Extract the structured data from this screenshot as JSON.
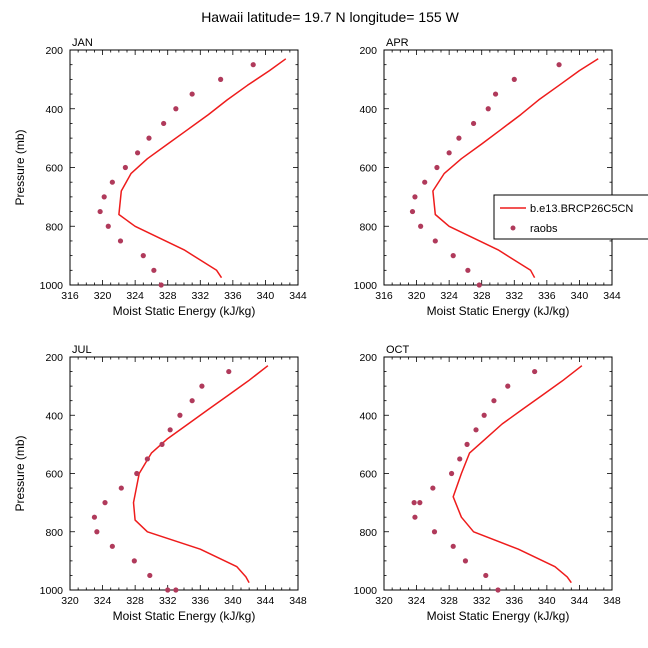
{
  "figure_title": "Hawaii  latitude= 19.7 N longitude= 155 W",
  "colors": {
    "model": "#ee1c1c",
    "obs": "#b03a5b",
    "axis": "#000000"
  },
  "legend": {
    "placement": "right of APR panel",
    "model_label": "b.e13.BRCP26C5CN",
    "obs_label": "raobs"
  },
  "chart_data": [
    {
      "type": "line",
      "title": "JAN",
      "xlabel": "Moist Static Energy (kJ/kg)",
      "ylabel": "Pressure (mb)",
      "xlim": [
        316,
        344
      ],
      "ylim": [
        1000,
        200
      ],
      "y_inverted": true,
      "xticks": [
        316,
        320,
        324,
        328,
        332,
        336,
        340,
        344
      ],
      "yticks": [
        200,
        400,
        600,
        800,
        1000
      ],
      "series": [
        {
          "name": "b.e13.BRCP26C5CN",
          "style": "line",
          "x": [
            342.5,
            340.5,
            337.8,
            335.3,
            333.0,
            330.5,
            328.0,
            325.5,
            323.5,
            322.3,
            322.0,
            324.0,
            330.0,
            334.0,
            334.6
          ],
          "y": [
            230,
            270,
            320,
            370,
            420,
            470,
            520,
            570,
            620,
            680,
            760,
            800,
            880,
            950,
            975
          ]
        },
        {
          "name": "raobs",
          "style": "markers",
          "x": [
            338.5,
            334.5,
            331.0,
            329.0,
            327.5,
            325.7,
            324.3,
            322.8,
            321.2,
            320.2,
            319.7,
            320.7,
            322.2,
            325.0,
            326.3,
            327.2
          ],
          "y": [
            250,
            300,
            350,
            400,
            450,
            500,
            550,
            600,
            650,
            700,
            750,
            800,
            850,
            900,
            950,
            1000
          ]
        }
      ]
    },
    {
      "type": "line",
      "title": "APR",
      "xlabel": "Moist Static Energy (kJ/kg)",
      "ylabel": "",
      "xlim": [
        316,
        344
      ],
      "ylim": [
        1000,
        200
      ],
      "y_inverted": true,
      "xticks": [
        316,
        320,
        324,
        328,
        332,
        336,
        340,
        344
      ],
      "yticks": [
        200,
        400,
        600,
        800,
        1000
      ],
      "series": [
        {
          "name": "b.e13.BRCP26C5CN",
          "style": "line",
          "x": [
            342.3,
            340.0,
            337.5,
            335.0,
            332.8,
            330.4,
            328.0,
            325.5,
            323.4,
            322.0,
            322.3,
            324.0,
            330.0,
            334.0,
            334.5
          ],
          "y": [
            230,
            270,
            320,
            370,
            420,
            470,
            520,
            570,
            620,
            680,
            760,
            800,
            880,
            950,
            975
          ]
        },
        {
          "name": "raobs",
          "style": "markers",
          "x": [
            337.5,
            332.0,
            329.7,
            328.8,
            327.0,
            325.2,
            324.0,
            322.5,
            321.0,
            319.8,
            319.5,
            320.5,
            322.3,
            324.5,
            326.3,
            327.7
          ],
          "y": [
            250,
            300,
            350,
            400,
            450,
            500,
            550,
            600,
            650,
            700,
            750,
            800,
            850,
            900,
            950,
            1000
          ]
        }
      ]
    },
    {
      "type": "line",
      "title": "JUL",
      "xlabel": "Moist Static Energy (kJ/kg)",
      "ylabel": "Pressure (mb)",
      "xlim": [
        320,
        348
      ],
      "ylim": [
        1000,
        200
      ],
      "y_inverted": true,
      "xticks": [
        320,
        324,
        328,
        332,
        336,
        340,
        344,
        348
      ],
      "yticks": [
        200,
        400,
        600,
        800,
        1000
      ],
      "series": [
        {
          "name": "b.e13.BRCP26C5CN",
          "style": "line",
          "x": [
            344.3,
            342.0,
            339.5,
            337.0,
            334.5,
            332.0,
            330.0,
            328.5,
            327.8,
            328.0,
            329.5,
            336.0,
            340.5,
            341.6,
            342.0
          ],
          "y": [
            230,
            280,
            330,
            380,
            430,
            480,
            530,
            600,
            700,
            760,
            800,
            860,
            920,
            955,
            975
          ]
        },
        {
          "name": "raobs",
          "style": "markers",
          "x": [
            339.5,
            336.2,
            335.0,
            333.5,
            332.3,
            331.3,
            329.5,
            328.2,
            326.3,
            324.3,
            323.0,
            323.3,
            325.2,
            327.9,
            329.8,
            332.0,
            333.0
          ],
          "y": [
            250,
            300,
            350,
            400,
            450,
            500,
            550,
            600,
            650,
            700,
            750,
            800,
            850,
            900,
            950,
            1000,
            1000
          ]
        }
      ]
    },
    {
      "type": "line",
      "title": "OCT",
      "xlabel": "Moist Static Energy (kJ/kg)",
      "ylabel": "",
      "xlim": [
        320,
        348
      ],
      "ylim": [
        1000,
        200
      ],
      "y_inverted": true,
      "xticks": [
        320,
        324,
        328,
        332,
        336,
        340,
        344,
        348
      ],
      "yticks": [
        200,
        400,
        600,
        800,
        1000
      ],
      "series": [
        {
          "name": "b.e13.BRCP26C5CN",
          "style": "line",
          "x": [
            344.3,
            342.0,
            339.5,
            337.0,
            334.5,
            332.5,
            330.5,
            329.5,
            328.5,
            329.5,
            331.0,
            336.5,
            341.0,
            342.5,
            343.0
          ],
          "y": [
            230,
            280,
            330,
            380,
            430,
            480,
            530,
            600,
            680,
            750,
            800,
            860,
            920,
            955,
            975
          ]
        },
        {
          "name": "raobs",
          "style": "markers",
          "x": [
            338.5,
            335.2,
            333.5,
            332.3,
            331.3,
            330.2,
            329.3,
            328.3,
            326.0,
            324.4,
            323.7,
            323.8,
            326.2,
            328.5,
            330.0,
            332.5,
            334.0
          ],
          "y": [
            250,
            300,
            350,
            400,
            450,
            500,
            550,
            600,
            650,
            700,
            700,
            750,
            800,
            850,
            900,
            950,
            1000
          ]
        }
      ]
    }
  ]
}
